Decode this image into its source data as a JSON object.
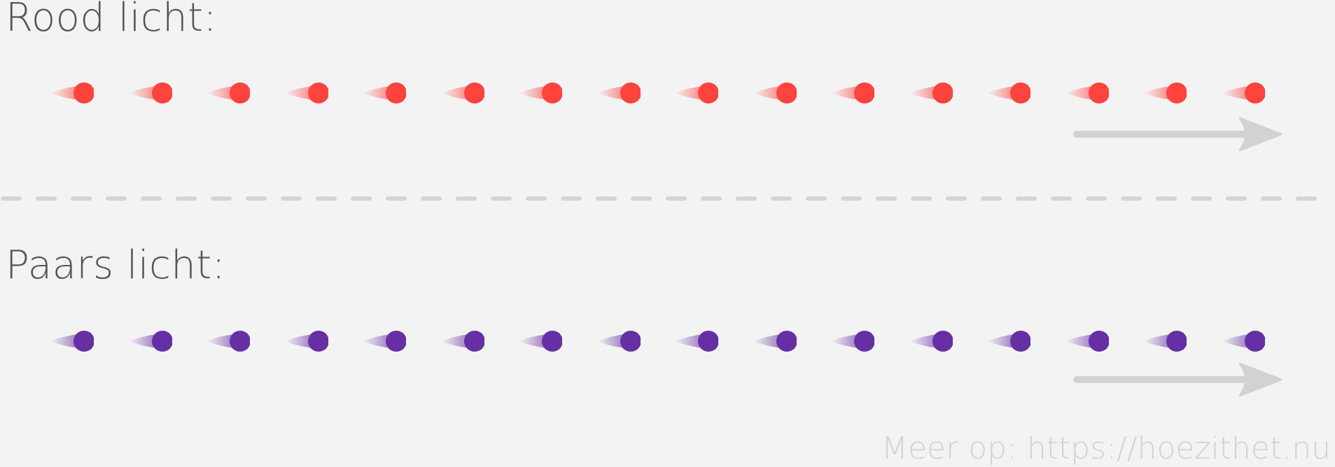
{
  "sections": {
    "red": {
      "title": "Rood licht:",
      "color": "#ff433d",
      "dot_count": 16
    },
    "purple": {
      "title": "Paars licht:",
      "color": "#662fa4",
      "dot_count": 16
    }
  },
  "arrow_color": "#d2d2d2",
  "divider_color": "#d4d4d4",
  "footer": {
    "text": "Meer op: https://hoezithet.nu"
  }
}
